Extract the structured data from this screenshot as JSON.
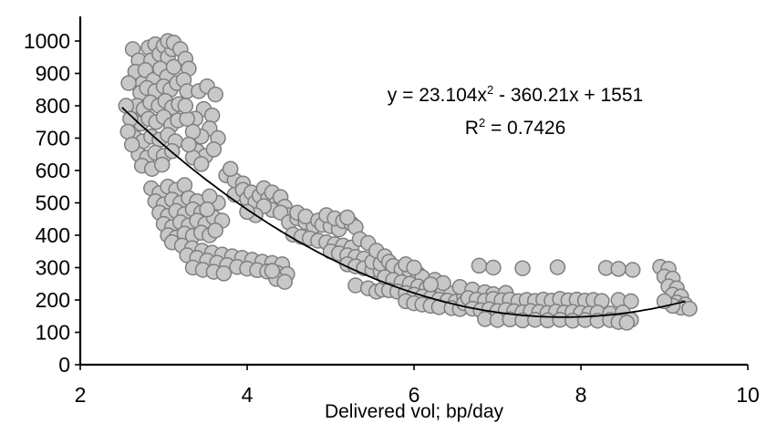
{
  "chart_data": {
    "type": "scatter",
    "title": "",
    "x": {
      "label": "Delivered vol; bp/day",
      "min": 2,
      "max": 10,
      "ticks": [
        2,
        4,
        6,
        8,
        10
      ]
    },
    "y": {
      "label": "",
      "min": 0,
      "max": 1000,
      "ticks": [
        0,
        100,
        200,
        300,
        400,
        500,
        600,
        700,
        800,
        900,
        1000
      ]
    },
    "grid": false,
    "legend": false,
    "annotation": {
      "eq_before_sup": "y = 23.104x",
      "eq_sup": "2",
      "eq_after_sup": " - 360.21x + 1551",
      "r2_before_sup": "R",
      "r2_sup": "2",
      "r2_after_sup": " = 0.7426"
    },
    "trendline": {
      "type": "polynomial",
      "order": 2,
      "a": 23.104,
      "b": -360.21,
      "c": 1551,
      "x_start": 2.5,
      "x_end": 9.25,
      "color": "#000000"
    },
    "style": {
      "point_fill": "#c8c8c8",
      "point_stroke": "#7f7f7f",
      "point_radius": 8,
      "axis_color": "#000000"
    },
    "points": [
      [
        2.63,
        975
      ],
      [
        2.7,
        940
      ],
      [
        2.66,
        905
      ],
      [
        2.75,
        870
      ],
      [
        2.82,
        980
      ],
      [
        2.85,
        940
      ],
      [
        2.9,
        990
      ],
      [
        2.95,
        960
      ],
      [
        3.0,
        985
      ],
      [
        3.05,
        950
      ],
      [
        3.1,
        975
      ],
      [
        2.78,
        910
      ],
      [
        2.88,
        880
      ],
      [
        2.96,
        915
      ],
      [
        3.04,
        890
      ],
      [
        3.12,
        920
      ],
      [
        2.72,
        840
      ],
      [
        2.8,
        855
      ],
      [
        2.9,
        845
      ],
      [
        3.0,
        860
      ],
      [
        3.08,
        850
      ],
      [
        3.16,
        870
      ],
      [
        2.68,
        800
      ],
      [
        2.76,
        790
      ],
      [
        2.84,
        810
      ],
      [
        2.94,
        800
      ],
      [
        3.02,
        815
      ],
      [
        3.1,
        795
      ],
      [
        3.18,
        805
      ],
      [
        2.64,
        755
      ],
      [
        2.73,
        745
      ],
      [
        2.82,
        760
      ],
      [
        2.91,
        750
      ],
      [
        3.0,
        765
      ],
      [
        3.09,
        740
      ],
      [
        3.17,
        755
      ],
      [
        2.66,
        700
      ],
      [
        2.75,
        690
      ],
      [
        2.85,
        705
      ],
      [
        2.95,
        695
      ],
      [
        3.05,
        710
      ],
      [
        3.14,
        690
      ],
      [
        2.7,
        650
      ],
      [
        2.8,
        640
      ],
      [
        2.9,
        655
      ],
      [
        3.0,
        645
      ],
      [
        3.1,
        660
      ],
      [
        2.74,
        615
      ],
      [
        2.86,
        605
      ],
      [
        2.98,
        618
      ],
      [
        3.05,
        1000
      ],
      [
        3.12,
        995
      ],
      [
        3.2,
        975
      ],
      [
        3.26,
        945
      ],
      [
        3.3,
        915
      ],
      [
        3.24,
        880
      ],
      [
        3.28,
        845
      ],
      [
        2.58,
        870
      ],
      [
        2.55,
        800
      ],
      [
        2.6,
        760
      ],
      [
        2.57,
        720
      ],
      [
        2.62,
        680
      ],
      [
        3.42,
        845
      ],
      [
        3.52,
        860
      ],
      [
        3.62,
        835
      ],
      [
        3.48,
        790
      ],
      [
        3.58,
        770
      ],
      [
        3.55,
        730
      ],
      [
        3.45,
        705
      ],
      [
        3.65,
        700
      ],
      [
        3.38,
        760
      ],
      [
        3.35,
        720
      ],
      [
        3.4,
        660
      ],
      [
        3.5,
        645
      ],
      [
        3.6,
        665
      ],
      [
        3.35,
        640
      ],
      [
        3.45,
        620
      ],
      [
        3.3,
        680
      ],
      [
        3.28,
        760
      ],
      [
        3.26,
        800
      ],
      [
        2.85,
        545
      ],
      [
        2.95,
        530
      ],
      [
        3.05,
        550
      ],
      [
        3.15,
        540
      ],
      [
        3.25,
        555
      ],
      [
        2.9,
        505
      ],
      [
        3.0,
        495
      ],
      [
        3.1,
        510
      ],
      [
        3.2,
        500
      ],
      [
        3.3,
        515
      ],
      [
        3.4,
        505
      ],
      [
        2.95,
        470
      ],
      [
        3.05,
        460
      ],
      [
        3.15,
        475
      ],
      [
        3.25,
        465
      ],
      [
        3.35,
        480
      ],
      [
        3.45,
        470
      ],
      [
        3.0,
        435
      ],
      [
        3.1,
        425
      ],
      [
        3.2,
        440
      ],
      [
        3.3,
        430
      ],
      [
        3.4,
        445
      ],
      [
        3.5,
        435
      ],
      [
        3.05,
        400
      ],
      [
        3.15,
        393
      ],
      [
        3.25,
        405
      ],
      [
        3.35,
        398
      ],
      [
        3.45,
        408
      ],
      [
        3.55,
        400
      ],
      [
        3.6,
        455
      ],
      [
        3.7,
        445
      ],
      [
        3.65,
        500
      ],
      [
        3.55,
        520
      ],
      [
        3.52,
        480
      ],
      [
        3.62,
        415
      ],
      [
        3.75,
        585
      ],
      [
        3.85,
        570
      ],
      [
        3.8,
        605
      ],
      [
        3.95,
        560
      ],
      [
        3.1,
        378
      ],
      [
        3.22,
        368
      ],
      [
        3.34,
        360
      ],
      [
        3.46,
        352
      ],
      [
        3.58,
        346
      ],
      [
        3.7,
        340
      ],
      [
        3.82,
        335
      ],
      [
        3.94,
        330
      ],
      [
        4.06,
        324
      ],
      [
        4.18,
        318
      ],
      [
        4.3,
        314
      ],
      [
        4.42,
        310
      ],
      [
        3.28,
        338
      ],
      [
        3.4,
        330
      ],
      [
        3.52,
        322
      ],
      [
        3.64,
        315
      ],
      [
        3.76,
        308
      ],
      [
        3.88,
        302
      ],
      [
        4.0,
        297
      ],
      [
        4.12,
        292
      ],
      [
        3.35,
        300
      ],
      [
        3.47,
        293
      ],
      [
        3.6,
        287
      ],
      [
        3.72,
        282
      ],
      [
        4.24,
        288
      ],
      [
        4.36,
        284
      ],
      [
        4.48,
        280
      ],
      [
        3.85,
        525
      ],
      [
        3.95,
        540
      ],
      [
        4.0,
        512
      ],
      [
        4.05,
        532
      ],
      [
        4.1,
        502
      ],
      [
        4.15,
        522
      ],
      [
        4.2,
        545
      ],
      [
        4.25,
        512
      ],
      [
        4.3,
        532
      ],
      [
        4.35,
        498
      ],
      [
        4.4,
        518
      ],
      [
        4.45,
        488
      ],
      [
        4.5,
        462
      ],
      [
        4.3,
        478
      ],
      [
        4.2,
        490
      ],
      [
        4.1,
        462
      ],
      [
        4.0,
        472
      ],
      [
        4.4,
        470
      ],
      [
        4.5,
        440
      ],
      [
        4.6,
        452
      ],
      [
        4.7,
        440
      ],
      [
        4.8,
        428
      ],
      [
        4.6,
        470
      ],
      [
        4.7,
        458
      ],
      [
        4.85,
        445
      ],
      [
        4.9,
        432
      ],
      [
        5.0,
        428
      ],
      [
        5.1,
        418
      ],
      [
        4.55,
        402
      ],
      [
        4.65,
        395
      ],
      [
        4.75,
        390
      ],
      [
        4.85,
        383
      ],
      [
        4.95,
        378
      ],
      [
        5.05,
        372
      ],
      [
        5.15,
        368
      ],
      [
        5.25,
        362
      ],
      [
        5.0,
        350
      ],
      [
        5.1,
        344
      ],
      [
        5.2,
        338
      ],
      [
        5.3,
        333
      ],
      [
        5.4,
        328
      ],
      [
        5.2,
        310
      ],
      [
        5.3,
        304
      ],
      [
        5.4,
        298
      ],
      [
        5.5,
        293
      ],
      [
        5.6,
        288
      ],
      [
        5.5,
        318
      ],
      [
        5.6,
        312
      ],
      [
        4.35,
        265
      ],
      [
        4.45,
        256
      ],
      [
        4.3,
        290
      ],
      [
        5.3,
        245
      ],
      [
        5.45,
        236
      ],
      [
        5.55,
        226
      ],
      [
        5.62,
        232
      ],
      [
        4.95,
        462
      ],
      [
        5.05,
        452
      ],
      [
        5.15,
        444
      ],
      [
        5.25,
        436
      ],
      [
        5.3,
        425
      ],
      [
        5.2,
        455
      ],
      [
        5.35,
        388
      ],
      [
        5.45,
        376
      ],
      [
        5.55,
        352
      ],
      [
        5.65,
        335
      ],
      [
        5.7,
        318
      ],
      [
        5.75,
        305
      ],
      [
        5.85,
        295
      ],
      [
        5.95,
        288
      ],
      [
        6.05,
        280
      ],
      [
        6.1,
        270
      ],
      [
        5.9,
        310
      ],
      [
        6.0,
        300
      ],
      [
        5.65,
        270
      ],
      [
        5.75,
        262
      ],
      [
        5.85,
        255
      ],
      [
        5.95,
        250
      ],
      [
        6.05,
        242
      ],
      [
        6.15,
        236
      ],
      [
        6.25,
        230
      ],
      [
        6.35,
        226
      ],
      [
        6.45,
        220
      ],
      [
        5.7,
        230
      ],
      [
        5.8,
        226
      ],
      [
        5.9,
        221
      ],
      [
        6.0,
        216
      ],
      [
        6.1,
        210
      ],
      [
        6.2,
        206
      ],
      [
        6.3,
        201
      ],
      [
        6.4,
        198
      ],
      [
        6.5,
        195
      ],
      [
        5.9,
        196
      ],
      [
        6.0,
        190
      ],
      [
        6.1,
        186
      ],
      [
        6.2,
        182
      ],
      [
        6.3,
        178
      ],
      [
        6.45,
        175
      ],
      [
        6.55,
        172
      ],
      [
        6.6,
        210
      ],
      [
        6.55,
        240
      ],
      [
        6.6,
        190
      ],
      [
        6.25,
        262
      ],
      [
        6.35,
        252
      ],
      [
        6.2,
        248
      ],
      [
        6.7,
        232
      ],
      [
        6.85,
        224
      ],
      [
        6.95,
        218
      ],
      [
        7.1,
        222
      ],
      [
        6.65,
        206
      ],
      [
        6.75,
        201
      ],
      [
        6.85,
        198
      ],
      [
        6.95,
        203
      ],
      [
        7.05,
        199
      ],
      [
        7.15,
        201
      ],
      [
        7.25,
        196
      ],
      [
        7.35,
        200
      ],
      [
        7.45,
        197
      ],
      [
        7.55,
        201
      ],
      [
        7.65,
        198
      ],
      [
        7.75,
        203
      ],
      [
        7.85,
        199
      ],
      [
        7.95,
        201
      ],
      [
        8.05,
        198
      ],
      [
        8.15,
        200
      ],
      [
        8.25,
        197
      ],
      [
        8.45,
        200
      ],
      [
        8.6,
        196
      ],
      [
        6.7,
        173
      ],
      [
        6.8,
        168
      ],
      [
        6.9,
        171
      ],
      [
        7.0,
        166
      ],
      [
        7.1,
        169
      ],
      [
        7.2,
        165
      ],
      [
        7.3,
        162
      ],
      [
        7.4,
        166
      ],
      [
        7.5,
        163
      ],
      [
        7.6,
        160
      ],
      [
        7.7,
        164
      ],
      [
        7.8,
        161
      ],
      [
        7.9,
        163
      ],
      [
        8.0,
        160
      ],
      [
        8.1,
        158
      ],
      [
        8.2,
        161
      ],
      [
        8.35,
        158
      ],
      [
        8.5,
        161
      ],
      [
        6.85,
        141
      ],
      [
        7.0,
        138
      ],
      [
        7.15,
        140
      ],
      [
        7.3,
        137
      ],
      [
        7.45,
        139
      ],
      [
        7.6,
        137
      ],
      [
        7.75,
        139
      ],
      [
        7.9,
        136
      ],
      [
        8.05,
        138
      ],
      [
        8.2,
        136
      ],
      [
        8.35,
        138
      ],
      [
        8.5,
        135
      ],
      [
        8.6,
        139
      ],
      [
        8.45,
        132
      ],
      [
        8.55,
        130
      ],
      [
        6.78,
        306
      ],
      [
        6.95,
        300
      ],
      [
        7.3,
        298
      ],
      [
        7.72,
        301
      ],
      [
        8.3,
        299
      ],
      [
        8.45,
        296
      ],
      [
        8.62,
        293
      ],
      [
        8.95,
        302
      ],
      [
        9.05,
        296
      ],
      [
        9.0,
        272
      ],
      [
        9.1,
        266
      ],
      [
        9.05,
        242
      ],
      [
        9.15,
        236
      ],
      [
        9.1,
        216
      ],
      [
        9.2,
        211
      ],
      [
        9.15,
        192
      ],
      [
        9.25,
        186
      ],
      [
        9.2,
        176
      ],
      [
        9.3,
        173
      ],
      [
        9.1,
        182
      ],
      [
        9.0,
        196
      ]
    ]
  }
}
